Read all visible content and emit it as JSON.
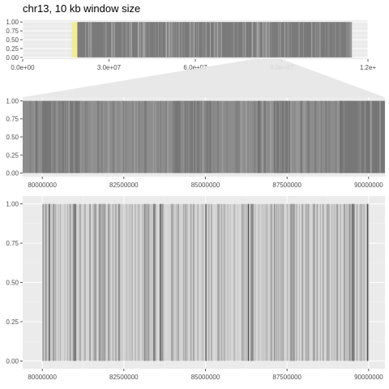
{
  "title": "chr13, 10 kb window size",
  "chart_data": [
    {
      "type": "heatmap",
      "name": "overview",
      "xlim": [
        0,
        120000000
      ],
      "ylim": [
        0,
        1.0
      ],
      "x_ticks": [
        0,
        30000000,
        60000000,
        90000000,
        120000000
      ],
      "x_tick_labels": [
        "0.0e+00",
        "3.0e+07",
        "6.0e+07",
        "9.0e+07",
        "1.2e+"
      ],
      "y_ticks": [
        0,
        0.25,
        0.5,
        0.75,
        1.0
      ],
      "y_tick_labels": [
        "0.00",
        "0.25",
        "0.50",
        "0.75",
        "1.00"
      ],
      "grid": true,
      "highlight": {
        "start": 17000000,
        "end": 19000000,
        "color": "#f2ec8c"
      },
      "data_range": [
        19000000,
        114400000
      ],
      "zoom_region": [
        80000000,
        90000000
      ]
    },
    {
      "type": "heatmap",
      "name": "zoom",
      "xlim": [
        79400000,
        90500000
      ],
      "ylim": [
        0,
        1.0
      ],
      "x_ticks": [
        80000000,
        82500000,
        85000000,
        87500000,
        90000000
      ],
      "x_tick_labels": [
        "80000000",
        "82500000",
        "85000000",
        "87500000",
        "90000000"
      ],
      "y_ticks": [
        0,
        0.25,
        0.5,
        0.75,
        1.0
      ],
      "y_tick_labels": [
        "0.00",
        "0.25",
        "0.50",
        "0.75",
        "1.00"
      ],
      "grid": true
    },
    {
      "type": "heatmap",
      "name": "detail",
      "xlim": [
        79400000,
        90500000
      ],
      "ylim": [
        0,
        1.0
      ],
      "x_ticks": [
        80000000,
        82500000,
        85000000,
        87500000,
        90000000
      ],
      "x_tick_labels": [
        "80000000",
        "82500000",
        "85000000",
        "87500000",
        "90000000"
      ],
      "y_ticks": [
        0,
        0.25,
        0.5,
        0.75,
        1.0
      ],
      "y_tick_labels": [
        "0.00",
        "0.25",
        "0.50",
        "0.75",
        "1.00"
      ],
      "grid": true,
      "data_range": [
        80000000,
        90000000
      ]
    }
  ]
}
